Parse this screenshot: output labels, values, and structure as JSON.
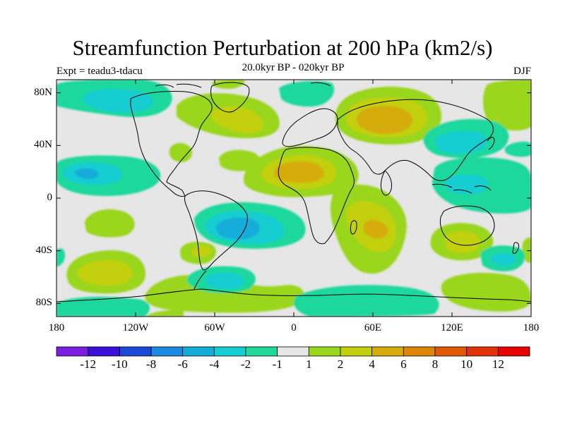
{
  "title": "Streamfunction Perturbation at 200 hPa (km2/s)",
  "subtitle": "20.0kyr BP - 020kyr BP",
  "left_label": "Expt = teadu3-tdacu",
  "right_label": "DJF",
  "lat_ticks": [
    {
      "label": "80N",
      "lat": 80
    },
    {
      "label": "40N",
      "lat": 40
    },
    {
      "label": "0",
      "lat": 0
    },
    {
      "label": "40S",
      "lat": -40
    },
    {
      "label": "80S",
      "lat": -80
    }
  ],
  "lon_ticks": [
    {
      "label": "180",
      "lon": -180
    },
    {
      "label": "120W",
      "lon": -120
    },
    {
      "label": "60W",
      "lon": -60
    },
    {
      "label": "0",
      "lon": 0
    },
    {
      "label": "60E",
      "lon": 60
    },
    {
      "label": "120E",
      "lon": 120
    },
    {
      "label": "180",
      "lon": 180
    }
  ],
  "colorbar": {
    "labels": [
      "-12",
      "-10",
      "-8",
      "-6",
      "-4",
      "-2",
      "-1",
      "1",
      "2",
      "4",
      "6",
      "8",
      "10",
      "12"
    ],
    "colors": [
      "#7a1fe0",
      "#3a10d8",
      "#1c48d6",
      "#1a8ae0",
      "#12acd9",
      "#14cdd2",
      "#1ed89c",
      "#e6e6e6",
      "#9ad61a",
      "#c2d00c",
      "#d6ac0a",
      "#de8406",
      "#e05a06",
      "#e23008",
      "#e60000"
    ]
  },
  "chart_data": {
    "type": "filled-contour-map",
    "title": "Streamfunction Perturbation at 200 hPa (km2/s)",
    "subtitle": "20.0kyr BP - 020kyr BP",
    "experiment": "Expt = teadu3-tdacu",
    "season": "DJF",
    "units": "km2/s",
    "lon_range": [
      -180,
      180
    ],
    "lat_range": [
      -90,
      90
    ],
    "contour_levels": [
      -12,
      -10,
      -8,
      -6,
      -4,
      -2,
      -1,
      1,
      2,
      4,
      6,
      8,
      10,
      12
    ],
    "features": [
      {
        "region": "Northern Africa / Arabia",
        "lon": 15,
        "lat": 15,
        "value_range": [
          2,
          4
        ],
        "sign": "positive"
      },
      {
        "region": "Siberia",
        "lon": 75,
        "lat": 58,
        "value_range": [
          2,
          4
        ],
        "sign": "positive"
      },
      {
        "region": "Indian Ocean",
        "lon": 63,
        "lat": -22,
        "value_range": [
          2,
          4
        ],
        "sign": "positive"
      },
      {
        "region": "South Pacific",
        "lon": -150,
        "lat": -55,
        "value_range": [
          1,
          4
        ],
        "sign": "positive"
      },
      {
        "region": "Southern Australia",
        "lon": 135,
        "lat": -30,
        "value_range": [
          1,
          2
        ],
        "sign": "positive"
      },
      {
        "region": "Southeast Pacific",
        "lon": 150,
        "lat": -65,
        "value_range": [
          1,
          2
        ],
        "sign": "positive"
      },
      {
        "region": "North Atlantic / Greenland",
        "lon": -40,
        "lat": 65,
        "value_range": [
          1,
          2
        ],
        "sign": "positive"
      },
      {
        "region": "Central Pacific (N)",
        "lon": -160,
        "lat": 20,
        "value_range": [
          -4,
          -2
        ],
        "sign": "negative"
      },
      {
        "region": "South America / South Atlantic",
        "lon": -40,
        "lat": -20,
        "value_range": [
          -4,
          -2
        ],
        "sign": "negative"
      },
      {
        "region": "Central Asia / Siberia east",
        "lon": 100,
        "lat": 40,
        "value_range": [
          -2,
          -1
        ],
        "sign": "negative"
      },
      {
        "region": "North Pacific",
        "lon": 160,
        "lat": 55,
        "value_range": [
          -2,
          -1
        ],
        "sign": "negative"
      },
      {
        "region": "Arctic Canada",
        "lon": -120,
        "lat": 70,
        "value_range": [
          -2,
          -1
        ],
        "sign": "negative"
      },
      {
        "region": "South Atlantic high latitude",
        "lon": -30,
        "lat": -60,
        "value_range": [
          -2,
          -1
        ],
        "sign": "negative"
      },
      {
        "region": "Western Pacific warm pool",
        "lon": 140,
        "lat": 5,
        "value_range": [
          -2,
          -1
        ],
        "sign": "negative"
      }
    ]
  }
}
